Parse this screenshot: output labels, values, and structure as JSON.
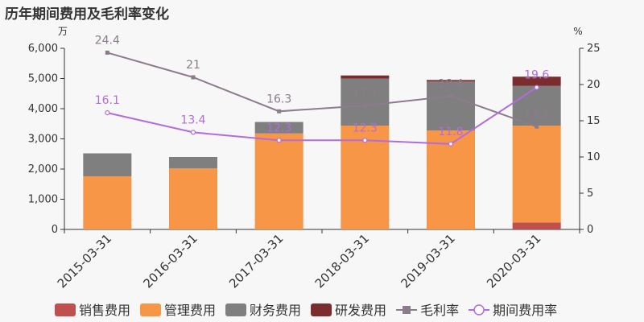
{
  "title": "历年期间费用及毛利率变化",
  "chart_data": {
    "type": "bar",
    "title": "历年期间费用及毛利率变化",
    "categories": [
      "2015-03-31",
      "2016-03-31",
      "2017-03-31",
      "2018-03-31",
      "2019-03-31",
      "2020-03-31"
    ],
    "y_left": {
      "unit": "万",
      "range": [
        0,
        6000
      ],
      "ticks": [
        "0",
        "1,000",
        "2,000",
        "3,000",
        "4,000",
        "5,000",
        "6,000"
      ]
    },
    "y_right": {
      "unit": "%",
      "range": [
        0,
        25
      ],
      "ticks": [
        "0",
        "5",
        "10",
        "15",
        "20",
        "25"
      ]
    },
    "bar_series": [
      {
        "name": "销售费用",
        "color": "#c0504d",
        "values": [
          0,
          0,
          0,
          0,
          0,
          230
        ]
      },
      {
        "name": "管理费用",
        "color": "#f79646",
        "values": [
          1760,
          2020,
          3180,
          3440,
          3280,
          3210
        ]
      },
      {
        "name": "财务费用",
        "color": "#7f7f7f",
        "values": [
          760,
          380,
          380,
          1560,
          1620,
          1320
        ]
      },
      {
        "name": "研发费用",
        "color": "#7b2c2c",
        "values": [
          0,
          0,
          0,
          100,
          50,
          300
        ]
      }
    ],
    "line_series": [
      {
        "name": "毛利率",
        "color": "#8c7b8c",
        "marker": "square",
        "values": [
          24.4,
          21,
          16.3,
          17.1,
          18.4,
          14.2
        ],
        "labels": [
          "24.4",
          "21",
          "16.3",
          "17.1",
          "18.4",
          "14.2"
        ]
      },
      {
        "name": "期间费用率",
        "color": "#b36be0",
        "marker": "circle",
        "values": [
          16.1,
          13.4,
          12.3,
          12.3,
          11.8,
          19.6
        ],
        "labels": [
          "16.1",
          "13.4",
          "12.3",
          "12.3",
          "11.8",
          "19.6"
        ]
      }
    ],
    "legend_position": "bottom",
    "grid": false
  }
}
